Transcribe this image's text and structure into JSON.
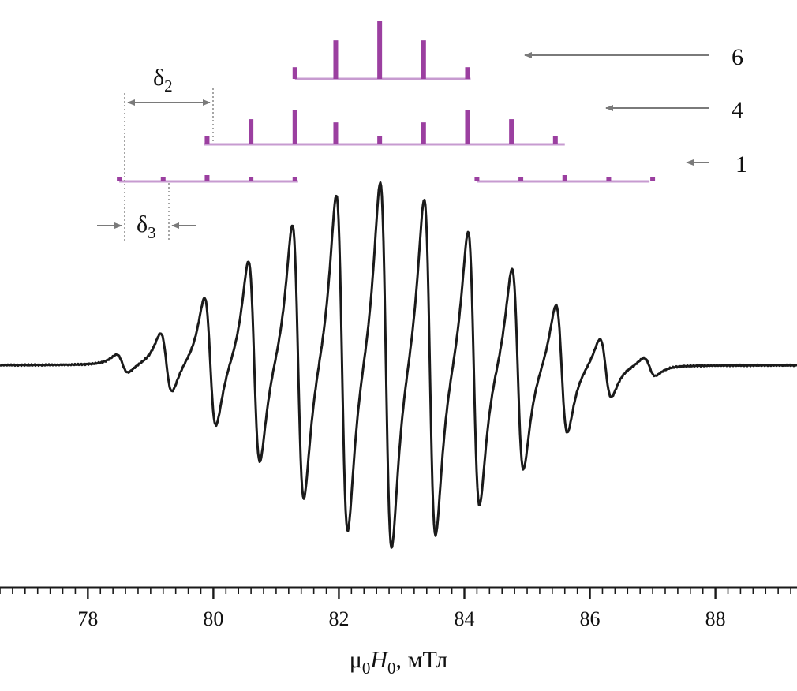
{
  "chart_data": {
    "type": "line",
    "title": "",
    "xlabel_parts": {
      "mu": "μ",
      "mu_sub": "0",
      "H": "H",
      "H_sub": "0",
      "rest": ", мТл"
    },
    "ylabel": "",
    "xlim": [
      76.6,
      89.3
    ],
    "x_ticks_major": [
      78,
      80,
      82,
      84,
      86,
      88
    ],
    "x_ticks_minor_step": 0.2,
    "x_tick_labels": [
      "78",
      "80",
      "82",
      "84",
      "86",
      "88"
    ],
    "grid": false,
    "legend": "none",
    "series": [
      {
        "style": "black-line",
        "center": 82.75,
        "line_spacing": 0.7,
        "lines": [
          {
            "x": 78.55,
            "amp": 0.05
          },
          {
            "x": 79.25,
            "amp": 0.16
          },
          {
            "x": 79.95,
            "amp": 0.35
          },
          {
            "x": 80.65,
            "amp": 0.55
          },
          {
            "x": 81.35,
            "amp": 0.75
          },
          {
            "x": 82.05,
            "amp": 0.92
          },
          {
            "x": 82.75,
            "amp": 1.0
          },
          {
            "x": 83.45,
            "amp": 0.92
          },
          {
            "x": 84.15,
            "amp": 0.75
          },
          {
            "x": 84.85,
            "amp": 0.55
          },
          {
            "x": 85.55,
            "amp": 0.35
          },
          {
            "x": 86.25,
            "amp": 0.16
          },
          {
            "x": 86.95,
            "amp": 0.05
          }
        ]
      }
    ],
    "stick_spectra": [
      {
        "label": "6",
        "color": "#9b3fa0",
        "baseline_x": [
          81.3,
          84.1
        ],
        "sticks": [
          {
            "x": 81.3,
            "h": 0.2
          },
          {
            "x": 81.95,
            "h": 0.66
          },
          {
            "x": 82.65,
            "h": 1.0
          },
          {
            "x": 83.35,
            "h": 0.66
          },
          {
            "x": 84.05,
            "h": 0.2
          }
        ]
      },
      {
        "label": "4",
        "color": "#9b3fa0",
        "baseline_x": [
          79.85,
          85.6
        ],
        "sticks": [
          {
            "x": 79.9,
            "h": 0.18
          },
          {
            "x": 80.6,
            "h": 0.55
          },
          {
            "x": 81.3,
            "h": 0.75
          },
          {
            "x": 81.95,
            "h": 0.48
          },
          {
            "x": 82.65,
            "h": 0.18
          },
          {
            "x": 83.35,
            "h": 0.48
          },
          {
            "x": 84.05,
            "h": 0.75
          },
          {
            "x": 84.75,
            "h": 0.55
          },
          {
            "x": 85.45,
            "h": 0.18
          }
        ]
      },
      {
        "label": "1",
        "color": "#9b3fa0",
        "baseline_x": [
          [
            78.5,
            81.35
          ],
          [
            84.2,
            86.95
          ]
        ],
        "sticks": [
          {
            "x": 78.5,
            "h": 0.1
          },
          {
            "x": 79.2,
            "h": 0.25
          },
          {
            "x": 79.9,
            "h": 0.4
          },
          {
            "x": 80.6,
            "h": 0.25
          },
          {
            "x": 81.3,
            "h": 0.08
          },
          {
            "x": 84.2,
            "h": 0.08
          },
          {
            "x": 84.9,
            "h": 0.25
          },
          {
            "x": 85.6,
            "h": 0.4
          },
          {
            "x": 86.3,
            "h": 0.25
          },
          {
            "x": 87.0,
            "h": 0.1
          }
        ]
      }
    ],
    "annotations": {
      "delta2": {
        "sym": "δ",
        "sub": "2",
        "x_from": 78.5,
        "x_to": 79.9
      },
      "delta3": {
        "sym": "δ",
        "sub": "3",
        "x_from": 78.5,
        "x_to": 79.2
      },
      "arrow_labels": [
        "6",
        "4",
        "1"
      ]
    },
    "colors": {
      "trace": "#1a1a1a",
      "sticks": "#9b3fa0",
      "baseline": "#c79bd0",
      "arrows": "#7a7a7a",
      "dotted": "#888888"
    }
  }
}
